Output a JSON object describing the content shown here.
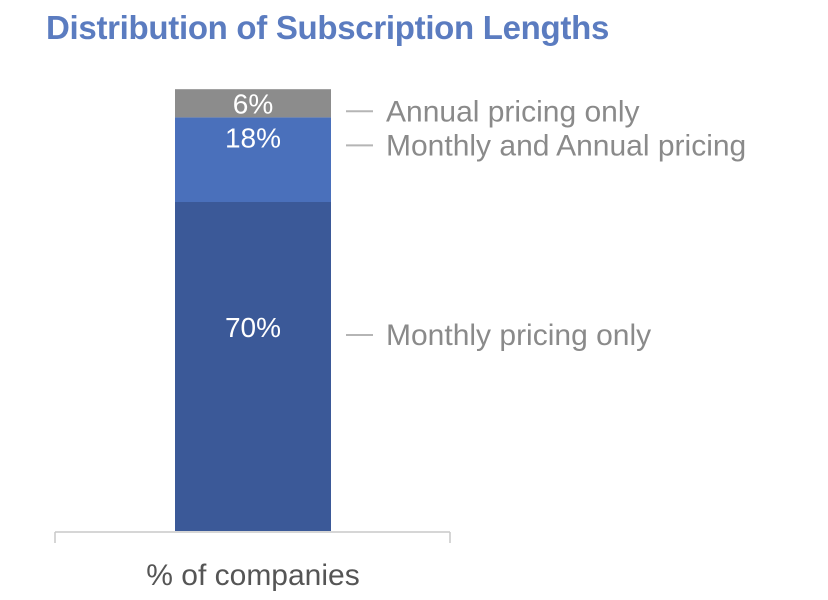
{
  "chart_data": {
    "type": "bar",
    "stacked": true,
    "title": "Distribution of Subscription Lengths",
    "categories": [
      "% of companies"
    ],
    "xlabel": "% of companies",
    "ylabel": "",
    "ylim": [
      0,
      94
    ],
    "grid": false,
    "legend": "right",
    "series": [
      {
        "name": "Monthly pricing only",
        "values": [
          70
        ],
        "label": "70%",
        "color": "#3b5998"
      },
      {
        "name": "Monthly and Annual pricing",
        "values": [
          18
        ],
        "label": "18%",
        "color": "#4a70bb"
      },
      {
        "name": "Annual pricing only",
        "values": [
          6
        ],
        "label": "6%",
        "color": "#8c8c8c"
      }
    ]
  },
  "colors": {
    "title": "#5b7cc0",
    "legend_text": "#8a8a8a",
    "legend_dash": "#b5b5b5",
    "axis": "#c8c8c8",
    "axis_text": "#555555",
    "segment_text": "#ffffff"
  }
}
